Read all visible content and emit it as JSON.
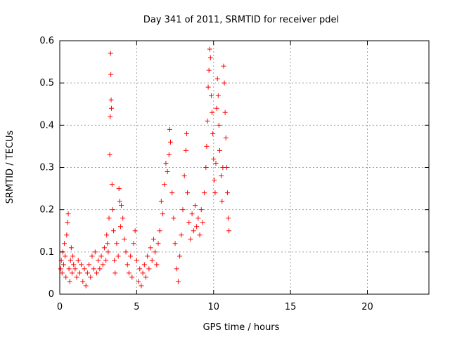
{
  "chart_data": {
    "type": "scatter",
    "title": "Day 341 of 2011, SRMTID for receiver pdel",
    "xlabel": "GPS time / hours",
    "ylabel": "SRMTID / TECUs",
    "xlim": [
      0,
      24
    ],
    "ylim": [
      0,
      0.6
    ],
    "xticks": [
      0,
      5,
      10,
      15,
      20
    ],
    "xtick_labels": [
      "0",
      "5",
      "10",
      "15",
      "20"
    ],
    "yticks": [
      0,
      0.1,
      0.2,
      0.3,
      0.4,
      0.5,
      0.6
    ],
    "ytick_labels": [
      "0",
      "0.1",
      "0.2",
      "0.3",
      "0.4",
      "0.5",
      "0.6"
    ],
    "grid": true,
    "marker": "+",
    "color": "#ff0000",
    "series": [
      {
        "name": "SRMTID",
        "points": [
          [
            0.05,
            0.06
          ],
          [
            0.1,
            0.08
          ],
          [
            0.15,
            0.05
          ],
          [
            0.2,
            0.1
          ],
          [
            0.25,
            0.07
          ],
          [
            0.3,
            0.12
          ],
          [
            0.35,
            0.09
          ],
          [
            0.4,
            0.04
          ],
          [
            0.45,
            0.14
          ],
          [
            0.5,
            0.17
          ],
          [
            0.55,
            0.19
          ],
          [
            0.6,
            0.06
          ],
          [
            0.65,
            0.03
          ],
          [
            0.7,
            0.08
          ],
          [
            0.75,
            0.11
          ],
          [
            0.8,
            0.05
          ],
          [
            0.85,
            0.09
          ],
          [
            0.9,
            0.07
          ],
          [
            1.0,
            0.06
          ],
          [
            1.1,
            0.04
          ],
          [
            1.2,
            0.08
          ],
          [
            1.3,
            0.05
          ],
          [
            1.4,
            0.07
          ],
          [
            1.5,
            0.03
          ],
          [
            1.6,
            0.06
          ],
          [
            1.7,
            0.02
          ],
          [
            1.8,
            0.05
          ],
          [
            1.9,
            0.07
          ],
          [
            2.0,
            0.04
          ],
          [
            2.1,
            0.09
          ],
          [
            2.2,
            0.06
          ],
          [
            2.3,
            0.1
          ],
          [
            2.4,
            0.05
          ],
          [
            2.5,
            0.08
          ],
          [
            2.6,
            0.06
          ],
          [
            2.7,
            0.09
          ],
          [
            2.8,
            0.07
          ],
          [
            2.9,
            0.11
          ],
          [
            3.0,
            0.08
          ],
          [
            3.05,
            0.14
          ],
          [
            3.1,
            0.12
          ],
          [
            3.15,
            0.1
          ],
          [
            3.2,
            0.18
          ],
          [
            3.25,
            0.33
          ],
          [
            3.28,
            0.42
          ],
          [
            3.3,
            0.57
          ],
          [
            3.32,
            0.52
          ],
          [
            3.34,
            0.46
          ],
          [
            3.36,
            0.44
          ],
          [
            3.4,
            0.26
          ],
          [
            3.45,
            0.2
          ],
          [
            3.5,
            0.15
          ],
          [
            3.55,
            0.08
          ],
          [
            3.6,
            0.05
          ],
          [
            3.7,
            0.12
          ],
          [
            3.8,
            0.09
          ],
          [
            3.85,
            0.25
          ],
          [
            3.9,
            0.22
          ],
          [
            3.95,
            0.16
          ],
          [
            4.0,
            0.21
          ],
          [
            4.1,
            0.18
          ],
          [
            4.2,
            0.13
          ],
          [
            4.3,
            0.1
          ],
          [
            4.4,
            0.07
          ],
          [
            4.5,
            0.05
          ],
          [
            4.6,
            0.09
          ],
          [
            4.7,
            0.04
          ],
          [
            4.8,
            0.12
          ],
          [
            4.9,
            0.15
          ],
          [
            5.0,
            0.08
          ],
          [
            5.1,
            0.03
          ],
          [
            5.2,
            0.06
          ],
          [
            5.3,
            0.02
          ],
          [
            5.4,
            0.05
          ],
          [
            5.5,
            0.07
          ],
          [
            5.6,
            0.04
          ],
          [
            5.7,
            0.09
          ],
          [
            5.8,
            0.06
          ],
          [
            5.9,
            0.11
          ],
          [
            6.0,
            0.08
          ],
          [
            6.1,
            0.13
          ],
          [
            6.2,
            0.1
          ],
          [
            6.3,
            0.07
          ],
          [
            6.4,
            0.12
          ],
          [
            6.5,
            0.15
          ],
          [
            6.6,
            0.22
          ],
          [
            6.7,
            0.19
          ],
          [
            6.8,
            0.26
          ],
          [
            6.9,
            0.31
          ],
          [
            7.0,
            0.29
          ],
          [
            7.1,
            0.33
          ],
          [
            7.15,
            0.39
          ],
          [
            7.2,
            0.36
          ],
          [
            7.3,
            0.24
          ],
          [
            7.4,
            0.18
          ],
          [
            7.5,
            0.12
          ],
          [
            7.6,
            0.06
          ],
          [
            7.7,
            0.03
          ],
          [
            7.8,
            0.09
          ],
          [
            7.9,
            0.14
          ],
          [
            8.0,
            0.2
          ],
          [
            8.1,
            0.28
          ],
          [
            8.2,
            0.34
          ],
          [
            8.25,
            0.38
          ],
          [
            8.3,
            0.24
          ],
          [
            8.4,
            0.17
          ],
          [
            8.5,
            0.13
          ],
          [
            8.6,
            0.19
          ],
          [
            8.7,
            0.15
          ],
          [
            8.8,
            0.21
          ],
          [
            8.9,
            0.16
          ],
          [
            9.0,
            0.18
          ],
          [
            9.1,
            0.14
          ],
          [
            9.2,
            0.2
          ],
          [
            9.3,
            0.17
          ],
          [
            9.4,
            0.24
          ],
          [
            9.5,
            0.3
          ],
          [
            9.55,
            0.35
          ],
          [
            9.6,
            0.41
          ],
          [
            9.65,
            0.49
          ],
          [
            9.7,
            0.53
          ],
          [
            9.75,
            0.58
          ],
          [
            9.8,
            0.56
          ],
          [
            9.85,
            0.47
          ],
          [
            9.9,
            0.43
          ],
          [
            9.95,
            0.38
          ],
          [
            10.0,
            0.32
          ],
          [
            10.05,
            0.27
          ],
          [
            10.1,
            0.24
          ],
          [
            10.15,
            0.31
          ],
          [
            10.2,
            0.44
          ],
          [
            10.25,
            0.51
          ],
          [
            10.3,
            0.47
          ],
          [
            10.35,
            0.4
          ],
          [
            10.4,
            0.34
          ],
          [
            10.5,
            0.28
          ],
          [
            10.55,
            0.22
          ],
          [
            10.6,
            0.3
          ],
          [
            10.65,
            0.54
          ],
          [
            10.7,
            0.5
          ],
          [
            10.75,
            0.43
          ],
          [
            10.8,
            0.37
          ],
          [
            10.85,
            0.3
          ],
          [
            10.9,
            0.24
          ],
          [
            10.95,
            0.18
          ],
          [
            11.0,
            0.15
          ]
        ]
      }
    ]
  }
}
